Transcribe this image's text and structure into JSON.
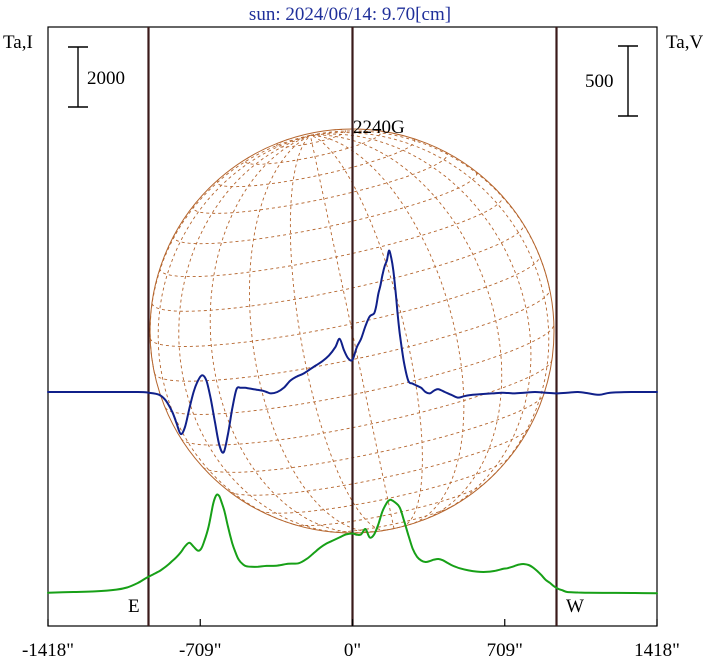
{
  "chart_data": {
    "type": "line",
    "title": "sun: 2024/06/14: 9.70[cm]",
    "left_axis_label": "Ta,I",
    "right_axis_label": "Ta,V",
    "left_scale_bar": "2000",
    "right_scale_bar": "500",
    "peak_label": "2240G",
    "east_label": "E",
    "west_label": "W",
    "x_tick_labels": [
      "-1418\"",
      "-709\"",
      "0\"",
      "709\"",
      "1418\""
    ],
    "x_ticks": [
      -1418,
      -709,
      0,
      709,
      1418
    ],
    "xlim": [
      -1418,
      1418
    ],
    "limb_markers": [
      -950,
      0,
      950
    ],
    "colors": {
      "stokes_i": "#17a017",
      "stokes_v": "#10208a",
      "disk": "#b5652d",
      "frame": "#000000",
      "markers": "#3a1a1a",
      "title": "#1f2f9a"
    },
    "series": [
      {
        "key": "I",
        "x": [
          -1418,
          -1300,
          -1200,
          -1100,
          -1050,
          -1000,
          -960,
          -930,
          -900,
          -880,
          -860,
          -840,
          -820,
          -800,
          -780,
          -760,
          -740,
          -720,
          -705,
          -690,
          -670,
          -650,
          -640,
          -630,
          -620,
          -610,
          -595,
          -580,
          -560,
          -545,
          -530,
          -510,
          -495,
          -470,
          -440,
          -400,
          -350,
          -300,
          -250,
          -210,
          -180,
          -150,
          -120,
          -90,
          -60,
          -30,
          0,
          20,
          40,
          60,
          80,
          100,
          120,
          140,
          160,
          170,
          180,
          200,
          220,
          240,
          260,
          280,
          300,
          320,
          340,
          360,
          380,
          400,
          420,
          440,
          460,
          480,
          500,
          540,
          580,
          620,
          660,
          700,
          720,
          740,
          760,
          780,
          800,
          820,
          840,
          860,
          880,
          900,
          920,
          940,
          960,
          980,
          1000,
          1050,
          1100,
          1200,
          1300,
          1418
        ],
        "y": [
          -25,
          0,
          20,
          80,
          150,
          300,
          470,
          580,
          690,
          790,
          900,
          1030,
          1160,
          1320,
          1520,
          1640,
          1510,
          1380,
          1440,
          1700,
          2180,
          2900,
          3150,
          3250,
          3190,
          3000,
          2660,
          2180,
          1630,
          1320,
          1080,
          920,
          860,
          840,
          840,
          870,
          880,
          940,
          960,
          1120,
          1300,
          1480,
          1620,
          1720,
          1820,
          1920,
          1950,
          1910,
          1920,
          2100,
          1820,
          1910,
          2250,
          2700,
          2980,
          3050,
          3070,
          2980,
          2820,
          2380,
          1900,
          1450,
          1180,
          1050,
          1000,
          1030,
          1080,
          1100,
          1060,
          980,
          900,
          840,
          790,
          720,
          680,
          670,
          700,
          770,
          790,
          830,
          880,
          920,
          930,
          900,
          820,
          700,
          560,
          400,
          300,
          180,
          100,
          50,
          0,
          -15,
          -25,
          -30,
          -35,
          -40
        ]
      },
      {
        "key": "V",
        "x": [
          -1418,
          -1200,
          -1000,
          -950,
          -900,
          -870,
          -840,
          -820,
          -800,
          -780,
          -760,
          -740,
          -720,
          -700,
          -680,
          -660,
          -640,
          -620,
          -600,
          -580,
          -560,
          -540,
          -520,
          -500,
          -480,
          -460,
          -440,
          -420,
          -400,
          -380,
          -350,
          -320,
          -290,
          -260,
          -230,
          -200,
          -170,
          -140,
          -110,
          -80,
          -60,
          -40,
          -20,
          0,
          20,
          40,
          60,
          80,
          100,
          110,
          120,
          130,
          140,
          150,
          160,
          170,
          180,
          190,
          200,
          210,
          220,
          240,
          260,
          280,
          300,
          320,
          340,
          360,
          380,
          400,
          430,
          460,
          490,
          520,
          560,
          600,
          650,
          700,
          750,
          800,
          850,
          900,
          950,
          1000,
          1050,
          1100,
          1150,
          1200,
          1300,
          1418
        ],
        "y": [
          0,
          0,
          0,
          -5,
          -20,
          -60,
          -140,
          -220,
          -300,
          -250,
          -120,
          0,
          80,
          120,
          80,
          -50,
          -220,
          -380,
          -430,
          -300,
          -120,
          20,
          30,
          30,
          25,
          20,
          15,
          10,
          0,
          -10,
          0,
          30,
          80,
          110,
          130,
          160,
          190,
          220,
          260,
          320,
          380,
          300,
          240,
          230,
          320,
          380,
          470,
          540,
          560,
          610,
          700,
          760,
          840,
          900,
          940,
          1010,
          960,
          870,
          730,
          560,
          420,
          210,
          80,
          60,
          45,
          30,
          0,
          -10,
          10,
          20,
          0,
          -20,
          -40,
          -30,
          -20,
          -15,
          -10,
          -5,
          -10,
          -5,
          0,
          -5,
          -10,
          -5,
          0,
          -10,
          -20,
          -5,
          0,
          0
        ]
      }
    ]
  }
}
